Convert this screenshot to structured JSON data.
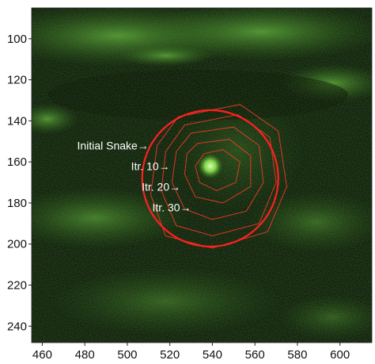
{
  "chart_data": {
    "type": "image",
    "xlim": [
      455,
      615
    ],
    "ylim": [
      248,
      85
    ],
    "x_ticks": [
      460,
      480,
      500,
      520,
      540,
      560,
      580,
      600
    ],
    "y_ticks": [
      100,
      120,
      140,
      160,
      180,
      200,
      220,
      240
    ],
    "colors": {
      "background_low": "#0a1206",
      "background_high": "#4a8a2a",
      "contour": "#ff3a2a",
      "snake": "#ff2020"
    },
    "initial_snake": {
      "center": [
        539,
        168
      ],
      "radius": 32
    },
    "core_spot": [
      539,
      162
    ],
    "annotations": [
      {
        "text": "Initial Snake",
        "x": 510,
        "y": 154
      },
      {
        "text": "Itr. 10",
        "x": 520,
        "y": 164
      },
      {
        "text": "Itr. 20",
        "x": 525,
        "y": 174
      },
      {
        "text": "Itr. 30",
        "x": 530,
        "y": 184
      }
    ],
    "contours": [
      [
        [
          536,
          156
        ],
        [
          545,
          154
        ],
        [
          553,
          160
        ],
        [
          551,
          170
        ],
        [
          542,
          174
        ],
        [
          534,
          170
        ],
        [
          532,
          162
        ]
      ],
      [
        [
          533,
          151
        ],
        [
          548,
          149
        ],
        [
          558,
          157
        ],
        [
          558,
          172
        ],
        [
          545,
          180
        ],
        [
          532,
          177
        ],
        [
          527,
          166
        ],
        [
          528,
          156
        ]
      ],
      [
        [
          530,
          146
        ],
        [
          550,
          143
        ],
        [
          562,
          152
        ],
        [
          564,
          170
        ],
        [
          556,
          184
        ],
        [
          540,
          188
        ],
        [
          527,
          183
        ],
        [
          521,
          170
        ],
        [
          523,
          155
        ]
      ],
      [
        [
          527,
          142
        ],
        [
          552,
          137
        ],
        [
          567,
          148
        ],
        [
          570,
          170
        ],
        [
          562,
          190
        ],
        [
          540,
          196
        ],
        [
          523,
          191
        ],
        [
          516,
          174
        ],
        [
          518,
          155
        ]
      ],
      [
        [
          524,
          138
        ],
        [
          553,
          132
        ],
        [
          571,
          145
        ],
        [
          575,
          172
        ],
        [
          566,
          194
        ],
        [
          540,
          202
        ],
        [
          518,
          196
        ],
        [
          511,
          176
        ],
        [
          514,
          152
        ]
      ]
    ]
  }
}
